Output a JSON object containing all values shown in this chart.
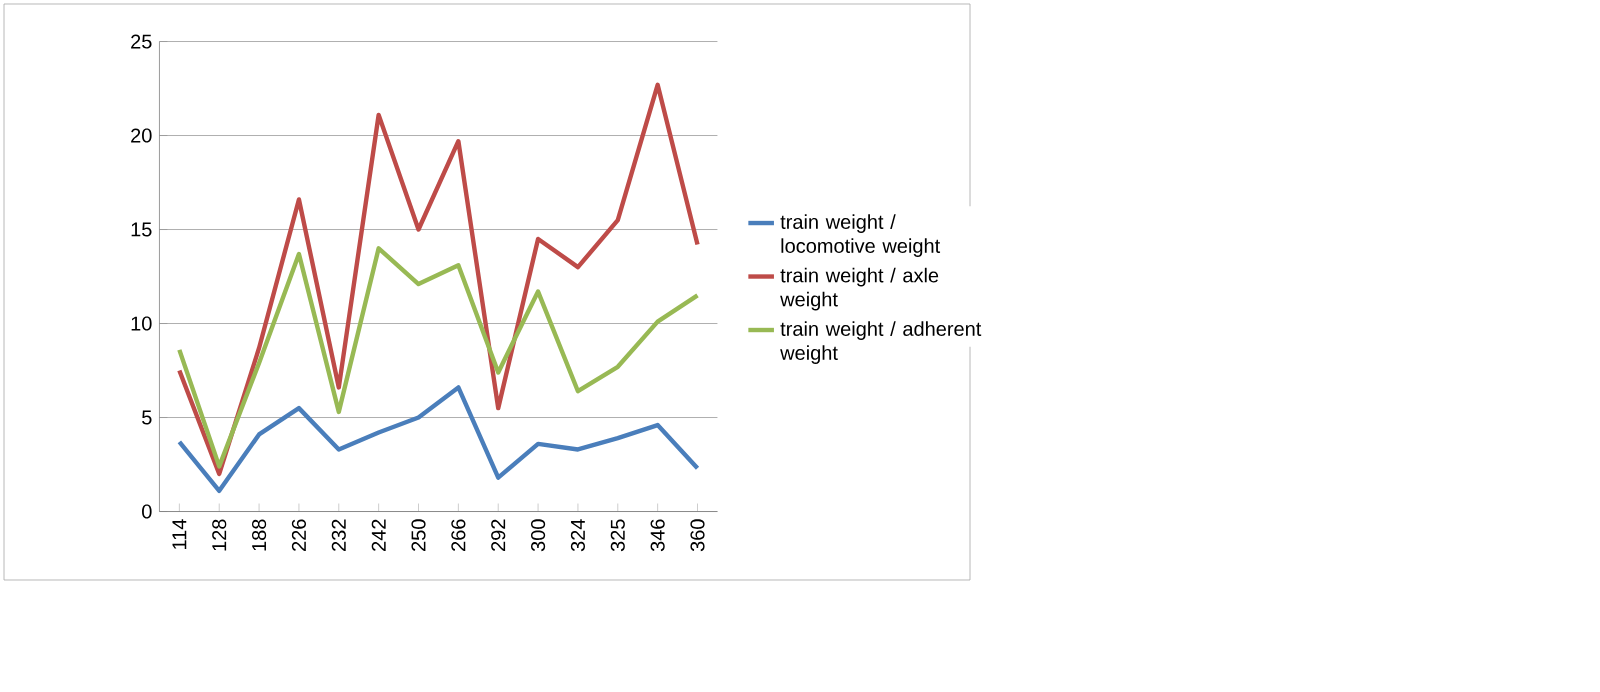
{
  "chart_data": {
    "type": "line",
    "categories": [
      "114",
      "128",
      "188",
      "226",
      "232",
      "242",
      "250",
      "266",
      "292",
      "300",
      "324",
      "325",
      "346",
      "360"
    ],
    "series": [
      {
        "name": "train weight / locomotive weight",
        "color": "#4a7ebb",
        "values": [
          3.7,
          1.1,
          4.1,
          5.5,
          3.3,
          4.2,
          5.0,
          6.6,
          1.8,
          3.6,
          3.3,
          3.9,
          4.6,
          2.3
        ]
      },
      {
        "name": "train weight / axle weight",
        "color": "#be4b48",
        "values": [
          7.5,
          2.0,
          8.7,
          16.6,
          6.6,
          21.1,
          15.0,
          19.7,
          5.5,
          14.5,
          13.0,
          15.5,
          22.7,
          14.2
        ]
      },
      {
        "name": "train weight / adherent weight",
        "color": "#98b954",
        "values": [
          8.6,
          2.4,
          7.9,
          13.7,
          5.3,
          14.0,
          12.1,
          13.1,
          7.4,
          11.7,
          6.4,
          7.7,
          10.1,
          11.5
        ]
      }
    ],
    "ylim": [
      0,
      25
    ],
    "yticks": [
      0,
      5,
      10,
      15,
      20,
      25
    ],
    "grid": "y",
    "legend": "right",
    "marker": "none",
    "line_style": "solid"
  }
}
